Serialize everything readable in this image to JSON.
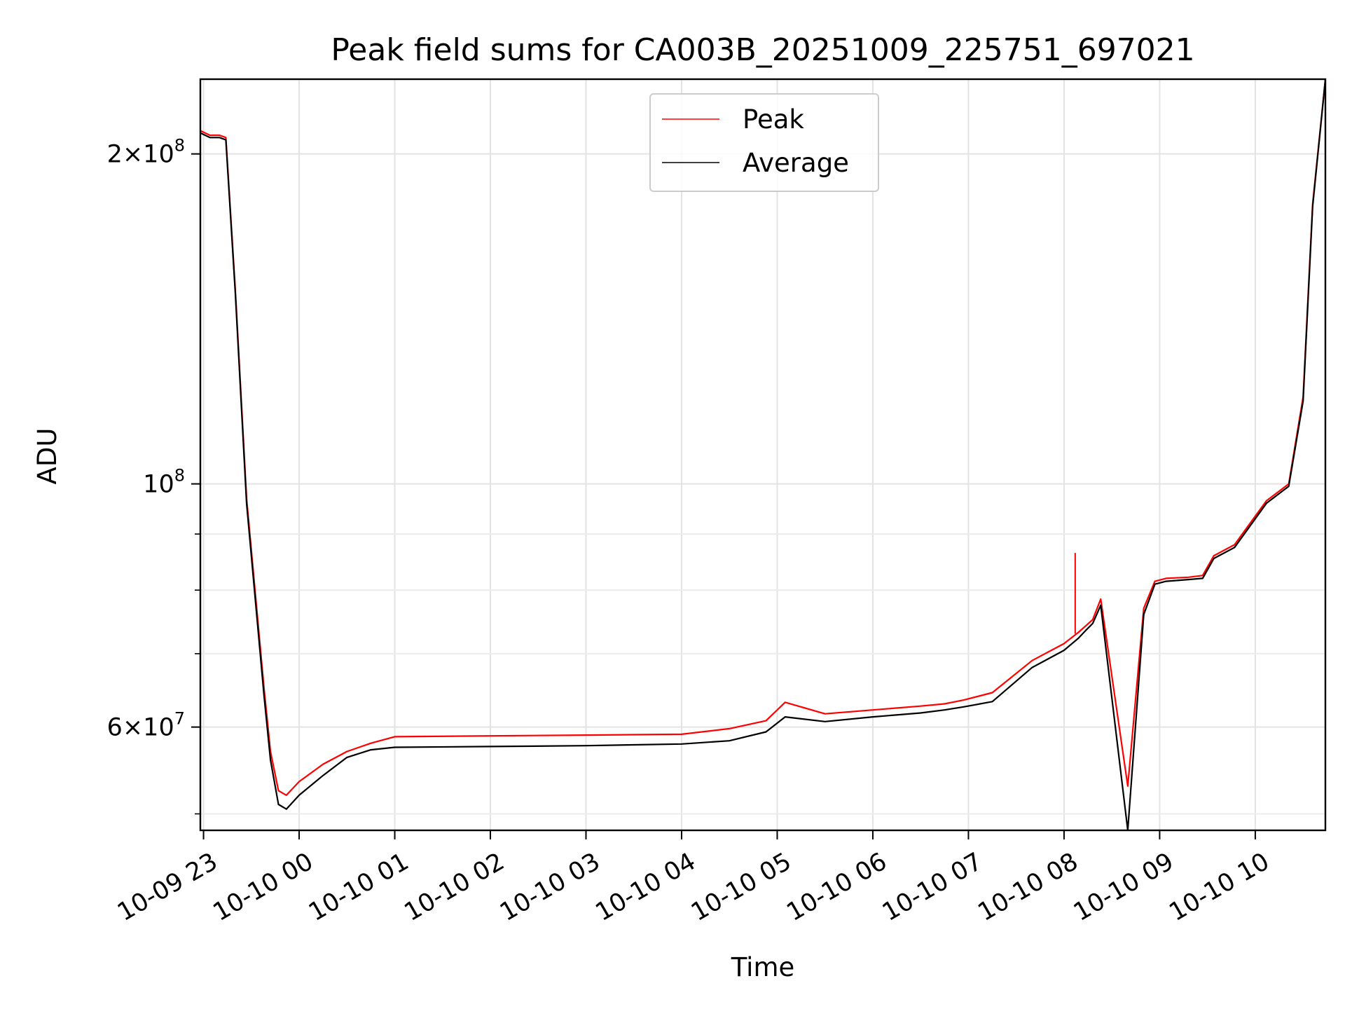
{
  "chart_data": {
    "type": "line",
    "title": "Peak field sums for CA003B_20251009_225751_697021",
    "xlabel": "Time",
    "ylabel": "ADU",
    "y_scale": "log",
    "grid": true,
    "legend_position": "upper center",
    "xlim": [
      "2025-10-09 22:58",
      "2025-10-10 10:44"
    ],
    "ylim": [
      48300000,
      234000000
    ],
    "x_ticks": [
      {
        "value": "2025-10-09 23:00",
        "label": "10-09 23"
      },
      {
        "value": "2025-10-10 00:00",
        "label": "10-10 00"
      },
      {
        "value": "2025-10-10 01:00",
        "label": "10-10 01"
      },
      {
        "value": "2025-10-10 02:00",
        "label": "10-10 02"
      },
      {
        "value": "2025-10-10 03:00",
        "label": "10-10 03"
      },
      {
        "value": "2025-10-10 04:00",
        "label": "10-10 04"
      },
      {
        "value": "2025-10-10 05:00",
        "label": "10-10 05"
      },
      {
        "value": "2025-10-10 06:00",
        "label": "10-10 06"
      },
      {
        "value": "2025-10-10 07:00",
        "label": "10-10 07"
      },
      {
        "value": "2025-10-10 08:00",
        "label": "10-10 08"
      },
      {
        "value": "2025-10-10 09:00",
        "label": "10-10 09"
      },
      {
        "value": "2025-10-10 10:00",
        "label": "10-10 10"
      }
    ],
    "y_major_ticks": [
      {
        "value": 60000000,
        "base": "6",
        "exp": "7"
      },
      {
        "value": 100000000,
        "base": "",
        "exp": "8"
      },
      {
        "value": 200000000,
        "base": "2",
        "exp": "8"
      }
    ],
    "y_minor_ticks": [
      50000000,
      70000000,
      80000000,
      90000000
    ],
    "series": [
      {
        "name": "Peak",
        "color": "#ff0000",
        "x": [
          "2025-10-09 22:58",
          "2025-10-09 23:04",
          "2025-10-09 23:10",
          "2025-10-09 23:14",
          "2025-10-09 23:20",
          "2025-10-09 23:27",
          "2025-10-09 23:33",
          "2025-10-09 23:38",
          "2025-10-09 23:42",
          "2025-10-09 23:47",
          "2025-10-09 23:52",
          "2025-10-10 00:00",
          "2025-10-10 00:15",
          "2025-10-10 00:30",
          "2025-10-10 00:45",
          "2025-10-10 01:00",
          "2025-10-10 02:00",
          "2025-10-10 03:00",
          "2025-10-10 04:00",
          "2025-10-10 04:30",
          "2025-10-10 04:53",
          "2025-10-10 05:05",
          "2025-10-10 05:30",
          "2025-10-10 06:00",
          "2025-10-10 06:30",
          "2025-10-10 06:45",
          "2025-10-10 06:57",
          "2025-10-10 07:15",
          "2025-10-10 07:40",
          "2025-10-10 08:00",
          "2025-10-10 08:09",
          "2025-10-10 08:14",
          "2025-10-10 08:18",
          "2025-10-10 08:23",
          "2025-10-10 08:40",
          "2025-10-10 08:50",
          "2025-10-10 08:57",
          "2025-10-10 09:04",
          "2025-10-10 09:18",
          "2025-10-10 09:27",
          "2025-10-10 09:34",
          "2025-10-10 09:47",
          "2025-10-10 10:07",
          "2025-10-10 10:21",
          "2025-10-10 10:30",
          "2025-10-10 10:36",
          "2025-10-10 10:44"
        ],
        "values": [
          210000000,
          208000000,
          208000000,
          207000000,
          150000000,
          97000000,
          78000000,
          65000000,
          57000000,
          52500000,
          52000000,
          53500000,
          55500000,
          57000000,
          58000000,
          58800000,
          58900000,
          59000000,
          59100000,
          59800000,
          60800000,
          63200000,
          61700000,
          62200000,
          62700000,
          63000000,
          63500000,
          64500000,
          69000000,
          71500000,
          73200000,
          74300000,
          75200000,
          78500000,
          53000000,
          77000000,
          81500000,
          82000000,
          82200000,
          82500000,
          86000000,
          88000000,
          96500000,
          100000000,
          120000000,
          180000000,
          234000000
        ]
      },
      {
        "name": "Average",
        "color": "#000000",
        "x": [
          "2025-10-09 22:58",
          "2025-10-09 23:04",
          "2025-10-09 23:10",
          "2025-10-09 23:14",
          "2025-10-09 23:20",
          "2025-10-09 23:27",
          "2025-10-09 23:33",
          "2025-10-09 23:38",
          "2025-10-09 23:42",
          "2025-10-09 23:47",
          "2025-10-09 23:52",
          "2025-10-10 00:00",
          "2025-10-10 00:15",
          "2025-10-10 00:30",
          "2025-10-10 00:45",
          "2025-10-10 01:00",
          "2025-10-10 02:00",
          "2025-10-10 03:00",
          "2025-10-10 04:00",
          "2025-10-10 04:30",
          "2025-10-10 04:53",
          "2025-10-10 05:05",
          "2025-10-10 05:30",
          "2025-10-10 06:00",
          "2025-10-10 06:30",
          "2025-10-10 06:45",
          "2025-10-10 06:57",
          "2025-10-10 07:15",
          "2025-10-10 07:40",
          "2025-10-10 08:00",
          "2025-10-10 08:09",
          "2025-10-10 08:14",
          "2025-10-10 08:18",
          "2025-10-10 08:23",
          "2025-10-10 08:40",
          "2025-10-10 08:50",
          "2025-10-10 08:57",
          "2025-10-10 09:04",
          "2025-10-10 09:18",
          "2025-10-10 09:27",
          "2025-10-10 09:34",
          "2025-10-10 09:47",
          "2025-10-10 10:07",
          "2025-10-10 10:21",
          "2025-10-10 10:30",
          "2025-10-10 10:36",
          "2025-10-10 10:44"
        ],
        "values": [
          209000000,
          207000000,
          207000000,
          206000000,
          149000000,
          96000000,
          77000000,
          64000000,
          56000000,
          51000000,
          50500000,
          52000000,
          54200000,
          56300000,
          57200000,
          57500000,
          57600000,
          57700000,
          57900000,
          58300000,
          59400000,
          61300000,
          60700000,
          61300000,
          61800000,
          62200000,
          62600000,
          63300000,
          68000000,
          70500000,
          72300000,
          73600000,
          74600000,
          77500000,
          48300000,
          76000000,
          81000000,
          81500000,
          81800000,
          82000000,
          85500000,
          87500000,
          96000000,
          99500000,
          119000000,
          179000000,
          234000000
        ]
      }
    ],
    "peak_spike": {
      "x": "2025-10-10 08:07",
      "value": 86500000
    }
  }
}
